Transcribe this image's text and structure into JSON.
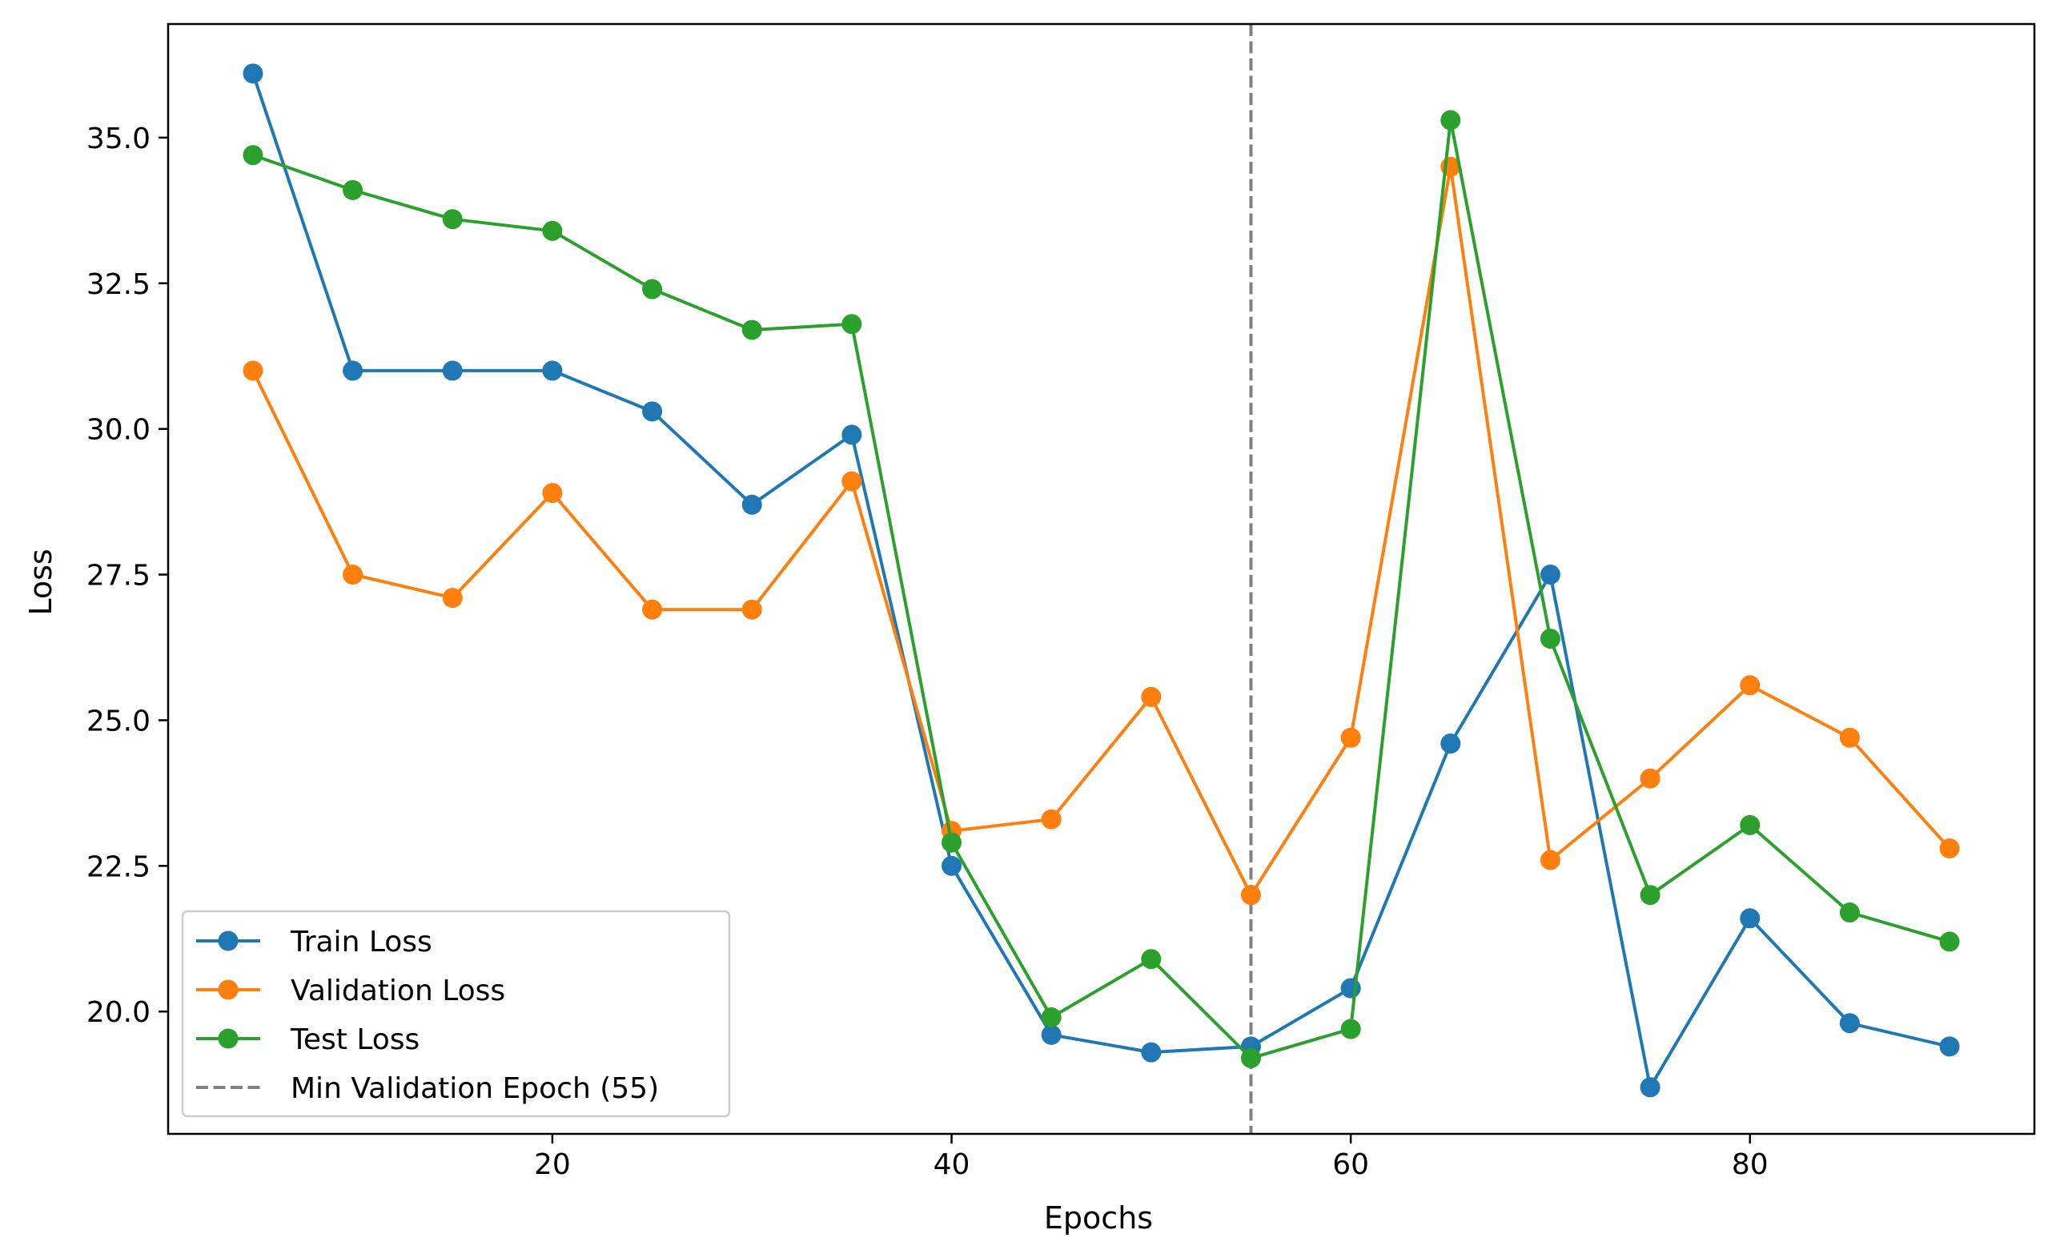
{
  "chart_data": {
    "type": "line",
    "title": "",
    "xlabel": "Epochs",
    "ylabel": "Loss",
    "xlim": [
      0.75,
      94.25
    ],
    "ylim": [
      17.9,
      36.95
    ],
    "xticks": [
      20,
      40,
      60,
      80
    ],
    "xtick_labels": [
      "20",
      "40",
      "60",
      "80"
    ],
    "yticks": [
      20.0,
      22.5,
      25.0,
      27.5,
      30.0,
      32.5,
      35.0
    ],
    "ytick_labels": [
      "20.0",
      "22.5",
      "25.0",
      "27.5",
      "30.0",
      "32.5",
      "35.0"
    ],
    "grid": false,
    "legend_position": "lower-left",
    "x": [
      5,
      10,
      15,
      20,
      25,
      30,
      35,
      40,
      45,
      50,
      55,
      60,
      65,
      70,
      75,
      80,
      85,
      90
    ],
    "series": [
      {
        "name": "Train Loss",
        "color": "#1f77b4",
        "values": [
          36.1,
          31.0,
          31.0,
          31.0,
          30.3,
          28.7,
          29.9,
          22.5,
          19.6,
          19.3,
          19.4,
          20.4,
          24.6,
          27.5,
          18.7,
          21.6,
          19.8,
          19.4
        ]
      },
      {
        "name": "Validation Loss",
        "color": "#ff7f0e",
        "values": [
          31.0,
          27.5,
          27.1,
          28.9,
          26.9,
          26.9,
          29.1,
          23.1,
          23.3,
          25.4,
          22.0,
          24.7,
          34.5,
          22.6,
          24.0,
          25.6,
          24.7,
          22.8
        ]
      },
      {
        "name": "Test Loss",
        "color": "#2ca02c",
        "values": [
          34.7,
          34.1,
          33.6,
          33.4,
          32.4,
          31.7,
          31.8,
          22.9,
          19.9,
          20.9,
          19.2,
          19.7,
          35.3,
          26.4,
          22.0,
          23.2,
          21.7,
          21.2
        ]
      }
    ],
    "annotations": [
      {
        "type": "vline",
        "x": 55,
        "name": "Min Validation Epoch (55)",
        "color": "#808080",
        "style": "dashed"
      }
    ]
  }
}
